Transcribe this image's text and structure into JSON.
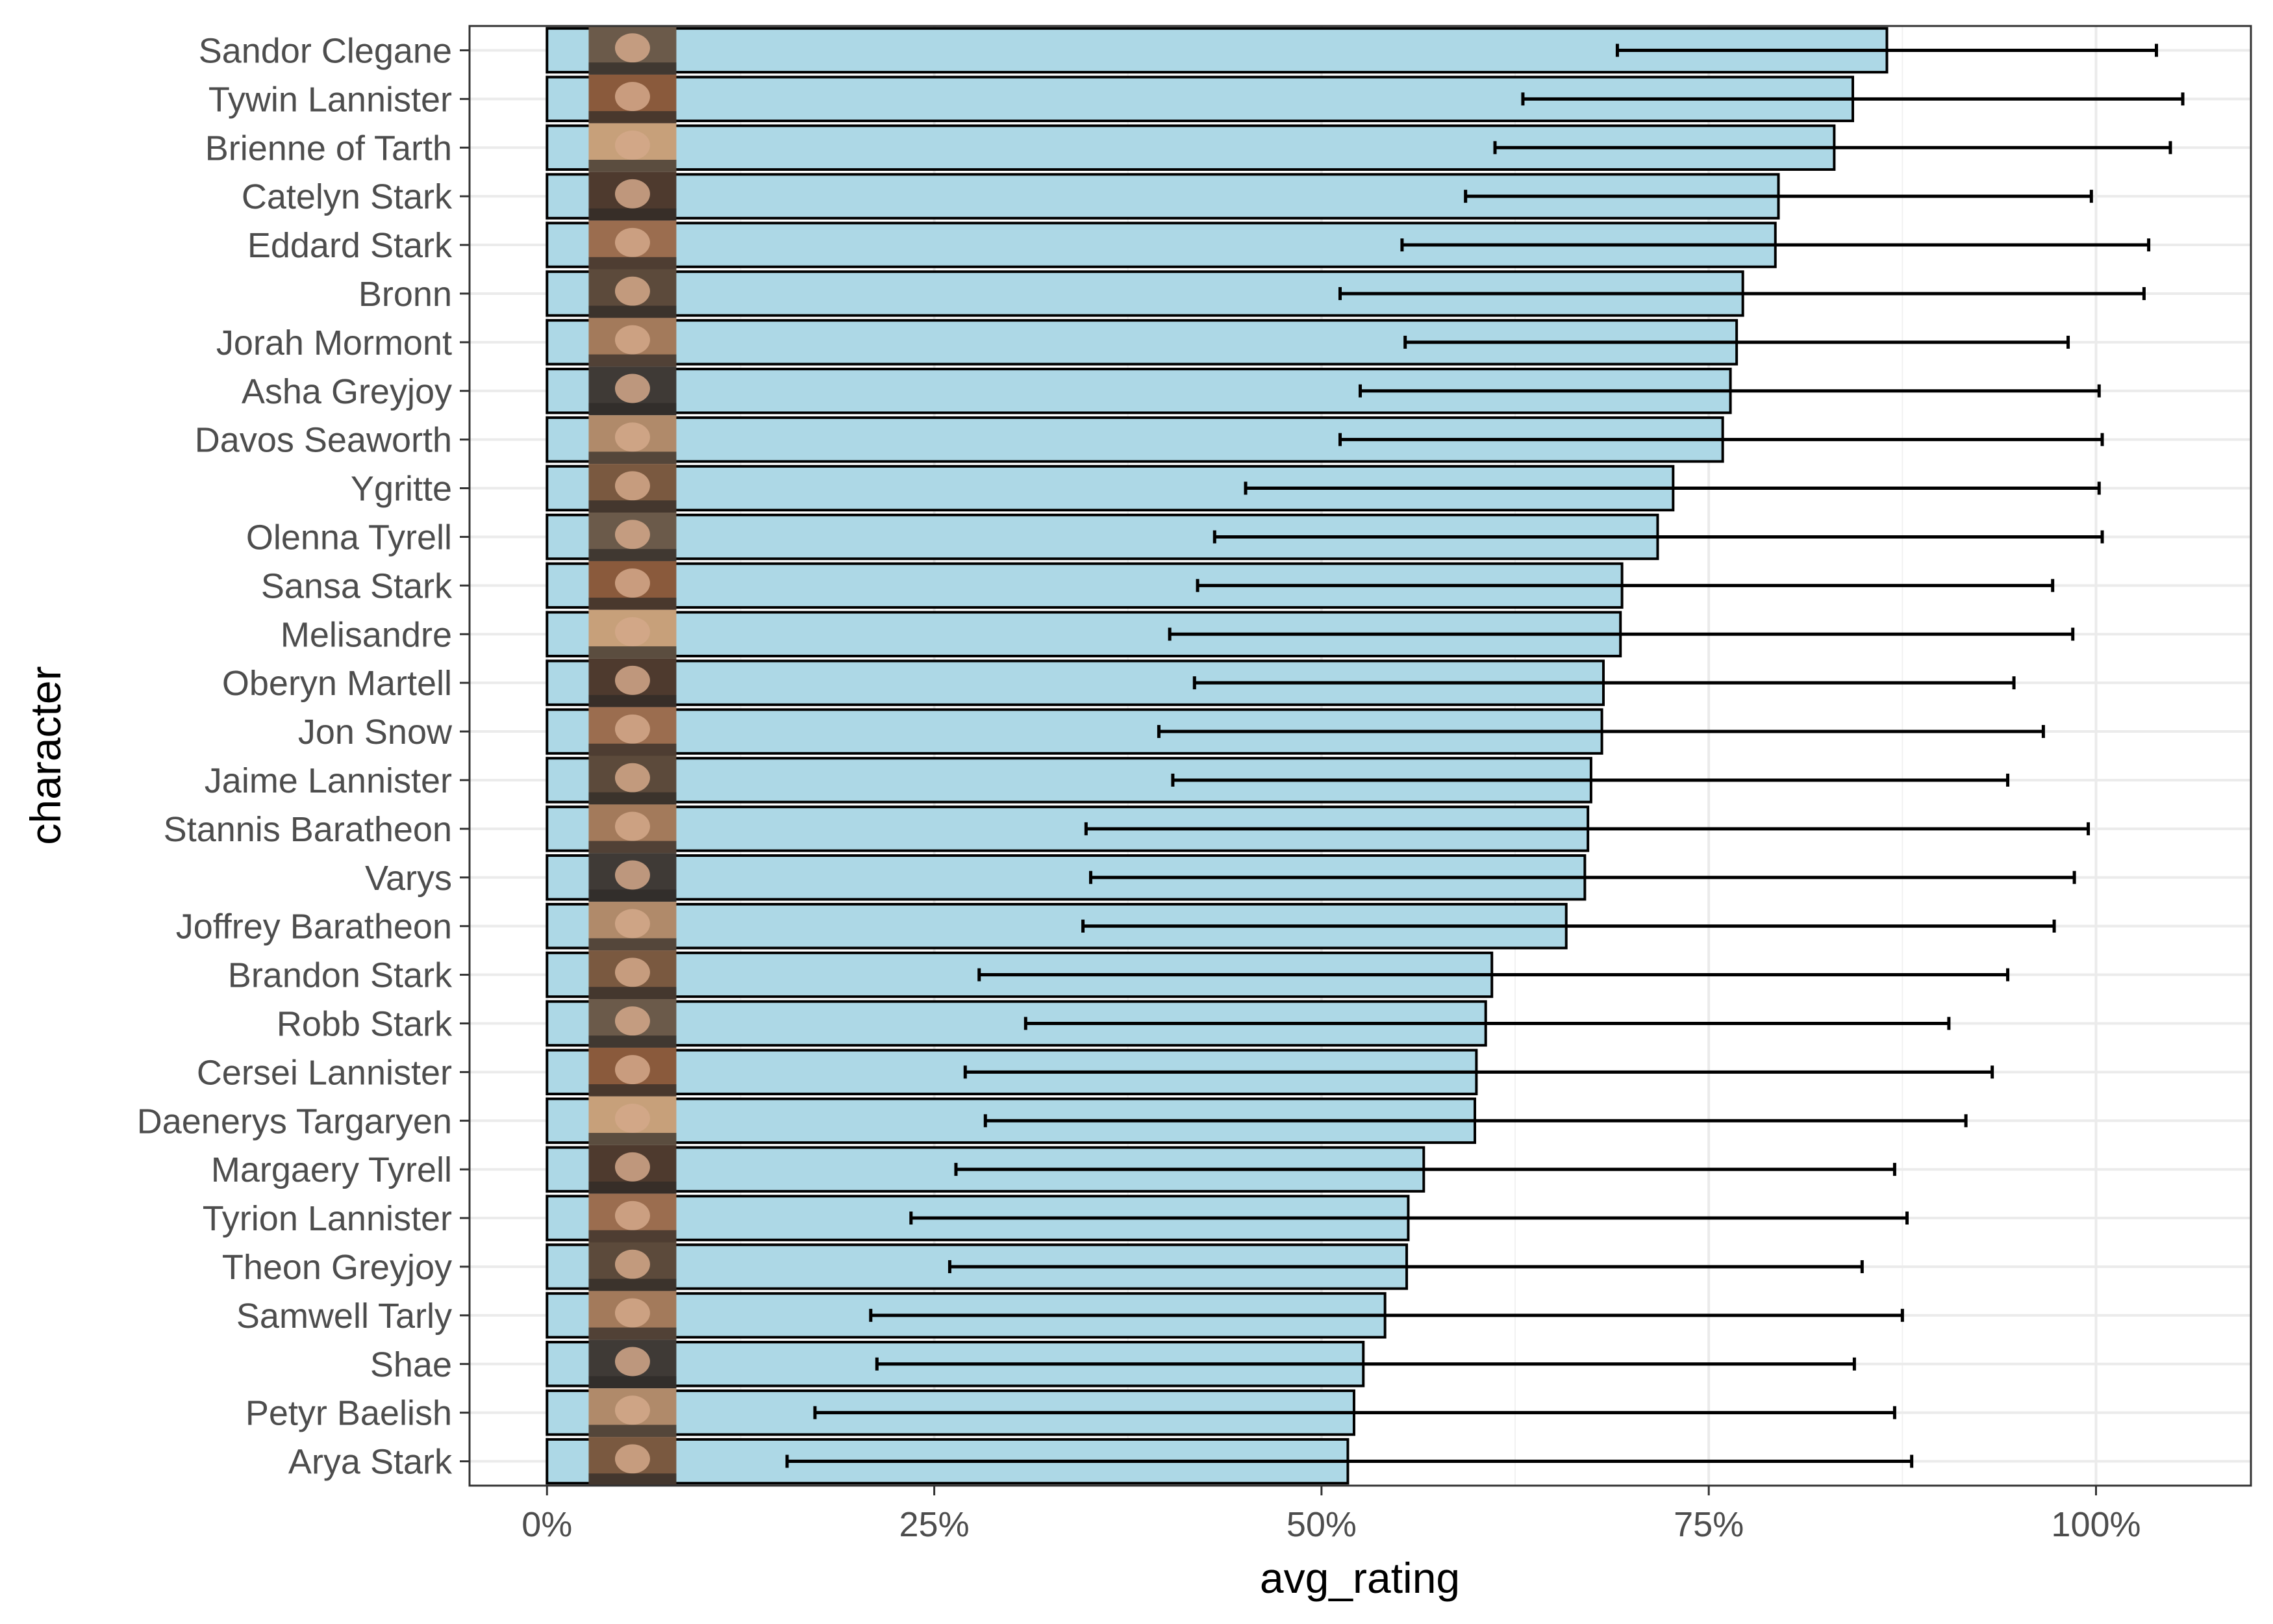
{
  "chart_data": {
    "type": "bar",
    "orientation": "horizontal",
    "xlabel": "avg_rating",
    "ylabel": "character",
    "xlim": [
      -0.05,
      1.1
    ],
    "x_ticks": [
      0,
      0.25,
      0.5,
      0.75,
      1.0
    ],
    "x_tick_labels": [
      "0%",
      "25%",
      "50%",
      "75%",
      "100%"
    ],
    "grid": true,
    "legend": "none",
    "bar_fill": "#add8e6",
    "bar_outline": "#000000",
    "has_error_bars": true,
    "has_character_portraits": true,
    "categories": [
      "Sandor Clegane",
      "Tywin Lannister",
      "Brienne of Tarth",
      "Catelyn Stark",
      "Eddard Stark",
      "Bronn",
      "Jorah Mormont",
      "Asha Greyjoy",
      "Davos Seaworth",
      "Ygritte",
      "Olenna Tyrell",
      "Sansa Stark",
      "Melisandre",
      "Oberyn Martell",
      "Jon Snow",
      "Jaime Lannister",
      "Stannis Baratheon",
      "Varys",
      "Joffrey Baratheon",
      "Brandon Stark",
      "Robb Stark",
      "Cersei Lannister",
      "Daenerys Targaryen",
      "Margaery Tyrell",
      "Tyrion Lannister",
      "Theon Greyjoy",
      "Samwell Tarly",
      "Shae",
      "Petyr Baelish",
      "Arya Stark"
    ],
    "values": [
      0.865,
      0.843,
      0.831,
      0.795,
      0.793,
      0.772,
      0.768,
      0.764,
      0.759,
      0.727,
      0.717,
      0.694,
      0.693,
      0.682,
      0.681,
      0.674,
      0.672,
      0.67,
      0.658,
      0.61,
      0.606,
      0.6,
      0.599,
      0.566,
      0.556,
      0.555,
      0.541,
      0.527,
      0.521,
      0.517
    ],
    "error_low": [
      0.691,
      0.63,
      0.612,
      0.593,
      0.552,
      0.512,
      0.554,
      0.525,
      0.512,
      0.451,
      0.431,
      0.42,
      0.402,
      0.418,
      0.395,
      0.404,
      0.348,
      0.351,
      0.346,
      0.279,
      0.309,
      0.27,
      0.283,
      0.264,
      0.235,
      0.26,
      0.209,
      0.213,
      0.173,
      0.155
    ],
    "error_high": [
      1.039,
      1.056,
      1.048,
      0.997,
      1.034,
      1.031,
      0.982,
      1.002,
      1.004,
      1.002,
      1.004,
      0.972,
      0.985,
      0.947,
      0.966,
      0.943,
      0.995,
      0.986,
      0.973,
      0.943,
      0.905,
      0.933,
      0.916,
      0.87,
      0.878,
      0.849,
      0.875,
      0.844,
      0.87,
      0.881
    ]
  }
}
